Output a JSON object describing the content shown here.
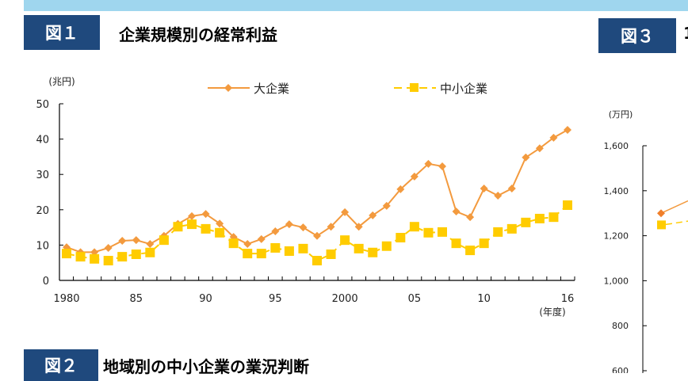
{
  "fig1": {
    "label": "図１",
    "title": "企業規模別の経常利益"
  },
  "fig2": {
    "label": "図２",
    "title": "地域別の中小企業の業況判断"
  },
  "fig3": {
    "label": "図３",
    "title": "1",
    "unit": "(万円)",
    "yticks": [
      "1,600",
      "1,400",
      "1,200",
      "1,000",
      "800",
      "600"
    ]
  },
  "colors": {
    "band": "#9fd6ee",
    "label_bg": "#1f497d",
    "large": "#f39a3e",
    "sme": "#ffcc00"
  },
  "chart_data": [
    {
      "type": "line",
      "title": "企業規模別の経常利益",
      "ylabel": "(兆円)",
      "xlabel": "(年度)",
      "ylim": [
        0,
        50
      ],
      "yticks": [
        "0",
        "10",
        "20",
        "30",
        "40",
        "50"
      ],
      "xticklabels": [
        "1980",
        "85",
        "90",
        "95",
        "2000",
        "05",
        "10",
        "16"
      ],
      "xtickyears": [
        1980,
        1985,
        1990,
        1995,
        2000,
        2005,
        2010,
        2016
      ],
      "legend": "top",
      "x": [
        1980,
        1981,
        1982,
        1983,
        1984,
        1985,
        1986,
        1987,
        1988,
        1989,
        1990,
        1991,
        1992,
        1993,
        1994,
        1995,
        1996,
        1997,
        1998,
        1999,
        2000,
        2001,
        2002,
        2003,
        2004,
        2005,
        2006,
        2007,
        2008,
        2009,
        2010,
        2011,
        2012,
        2013,
        2014,
        2015,
        2016
      ],
      "series": [
        {
          "name": "大企業",
          "marker": "diamond",
          "values": [
            9.4,
            8.0,
            8.0,
            9.2,
            11.2,
            11.4,
            10.3,
            12.6,
            16.0,
            18.2,
            18.8,
            16.1,
            12.3,
            10.3,
            11.7,
            13.9,
            15.9,
            15.0,
            12.6,
            15.2,
            19.3,
            15.2,
            18.4,
            21.1,
            25.8,
            29.4,
            33.0,
            32.3,
            19.5,
            17.9,
            26.0,
            24.0,
            26.0,
            34.8,
            37.4,
            40.4,
            42.6
          ]
        },
        {
          "name": "中小企業",
          "marker": "square",
          "values": [
            7.6,
            6.7,
            6.1,
            5.6,
            6.7,
            7.4,
            7.9,
            11.4,
            15.2,
            15.9,
            14.6,
            13.5,
            10.5,
            7.6,
            7.6,
            9.2,
            8.3,
            9.0,
            5.6,
            7.4,
            11.4,
            9.0,
            7.9,
            9.7,
            12.1,
            15.2,
            13.5,
            13.7,
            10.5,
            8.5,
            10.5,
            13.7,
            14.6,
            16.4,
            17.5,
            17.9,
            21.3
          ]
        }
      ]
    },
    {
      "type": "line",
      "ylabel": "(万円)",
      "ylim": [
        600,
        1600
      ],
      "series": [
        {
          "marker": "diamond",
          "values": [
            1300
          ]
        },
        {
          "marker": "square",
          "values": [
            1250
          ]
        }
      ]
    }
  ]
}
